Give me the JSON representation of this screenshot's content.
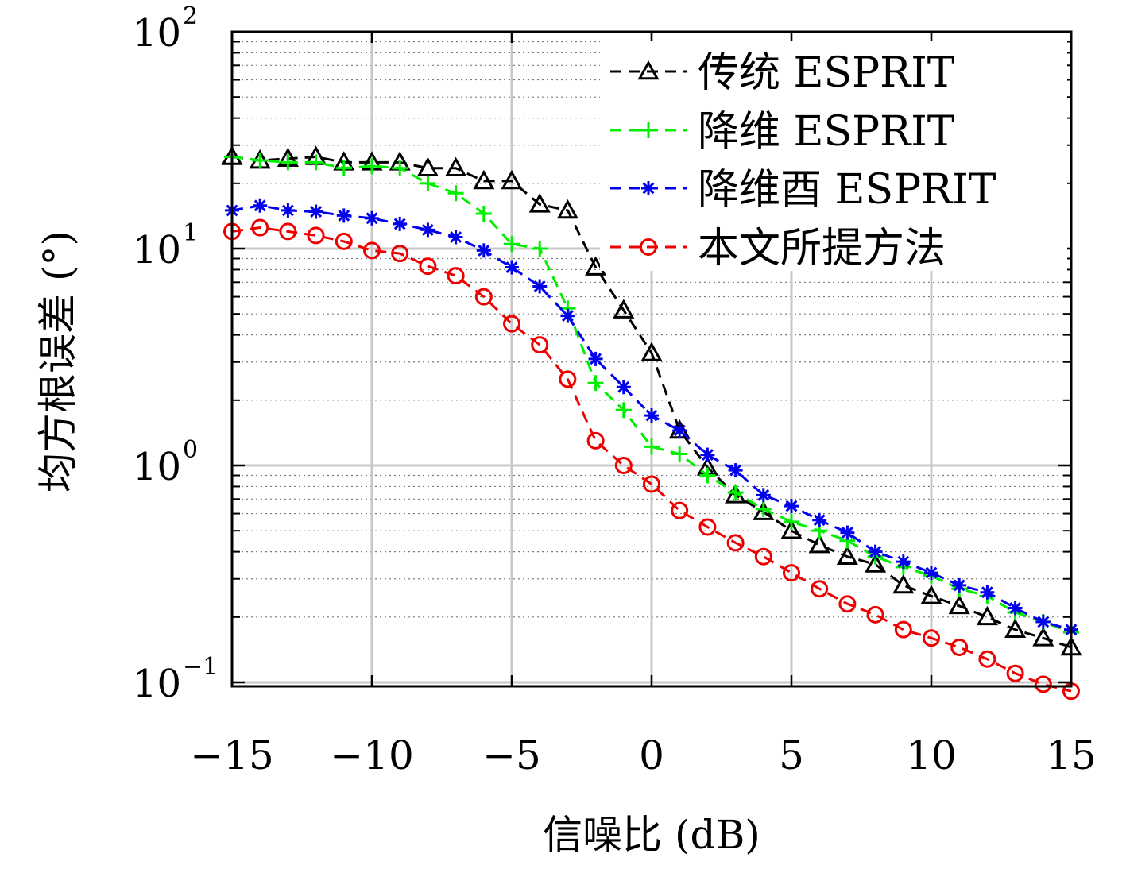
{
  "chart_data": {
    "type": "line",
    "xlabel": "信噪比 (dB)",
    "ylabel": "均方根误差 (°)",
    "xlim": [
      -15,
      15
    ],
    "ylim": [
      0.09,
      100
    ],
    "yscale": "log",
    "grid": true,
    "legend_position": "top-right",
    "x_ticks": [
      "−15",
      "−10",
      "−5",
      "0",
      "5",
      "10",
      "15"
    ],
    "y_ticks": [
      {
        "base": "10",
        "exp": "−1",
        "value": 0.1
      },
      {
        "base": "10",
        "exp": "0",
        "value": 1
      },
      {
        "base": "10",
        "exp": "1",
        "value": 10
      },
      {
        "base": "10",
        "exp": "2",
        "value": 100
      }
    ],
    "x": [
      -15,
      -14,
      -13,
      -12,
      -11,
      -10,
      -9,
      -8,
      -7,
      -6,
      -5,
      -4,
      -3,
      -2,
      -1,
      0,
      1,
      2,
      3,
      4,
      5,
      6,
      7,
      8,
      9,
      10,
      11,
      12,
      13,
      14,
      15
    ],
    "series": [
      {
        "name": "传统 ESPRIT",
        "color": "#000000",
        "marker": "triangle",
        "values": [
          26.5,
          25.5,
          26,
          26.5,
          25,
          25,
          25,
          23.5,
          23.5,
          20.5,
          20.5,
          16,
          15,
          8.2,
          5.2,
          3.3,
          1.45,
          0.98,
          0.73,
          0.61,
          0.5,
          0.43,
          0.38,
          0.35,
          0.28,
          0.25,
          0.225,
          0.2,
          0.175,
          0.16,
          0.145
        ]
      },
      {
        "name": "降维 ESPRIT",
        "color": "#00ee00",
        "marker": "plus",
        "values": [
          26.5,
          25.5,
          25,
          25,
          23.5,
          24,
          23.5,
          20,
          18,
          14.5,
          10.5,
          10,
          5.3,
          2.4,
          1.8,
          1.22,
          1.13,
          0.9,
          0.75,
          0.63,
          0.55,
          0.5,
          0.45,
          0.38,
          0.34,
          0.31,
          0.27,
          0.25,
          0.21,
          0.19,
          0.17
        ]
      },
      {
        "name": "降维酉 ESPRIT",
        "color": "#0000ee",
        "marker": "asterisk",
        "values": [
          15,
          15.8,
          15,
          14.8,
          14.2,
          13.8,
          13,
          12.2,
          11.3,
          9.8,
          8.2,
          6.7,
          4.9,
          3.1,
          2.3,
          1.7,
          1.45,
          1.12,
          0.95,
          0.73,
          0.65,
          0.56,
          0.49,
          0.4,
          0.36,
          0.32,
          0.28,
          0.26,
          0.22,
          0.19,
          0.175
        ]
      },
      {
        "name": "本文所提方法",
        "color": "#ee0000",
        "marker": "circle",
        "values": [
          12,
          12.5,
          12,
          11.5,
          10.8,
          9.8,
          9.5,
          8.3,
          7.5,
          6,
          4.5,
          3.6,
          2.5,
          1.3,
          1,
          0.82,
          0.62,
          0.52,
          0.44,
          0.38,
          0.32,
          0.27,
          0.23,
          0.205,
          0.175,
          0.16,
          0.145,
          0.128,
          0.11,
          0.098,
          0.091
        ]
      }
    ]
  }
}
